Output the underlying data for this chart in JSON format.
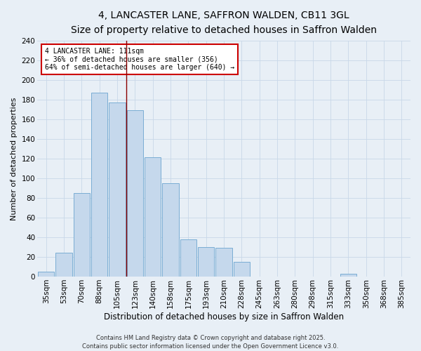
{
  "title_line1": "4, LANCASTER LANE, SAFFRON WALDEN, CB11 3GL",
  "title_line2": "Size of property relative to detached houses in Saffron Walden",
  "xlabel": "Distribution of detached houses by size in Saffron Walden",
  "ylabel": "Number of detached properties",
  "categories": [
    "35sqm",
    "53sqm",
    "70sqm",
    "88sqm",
    "105sqm",
    "123sqm",
    "140sqm",
    "158sqm",
    "175sqm",
    "193sqm",
    "210sqm",
    "228sqm",
    "245sqm",
    "263sqm",
    "280sqm",
    "298sqm",
    "315sqm",
    "333sqm",
    "350sqm",
    "368sqm",
    "385sqm"
  ],
  "values": [
    5,
    24,
    85,
    187,
    177,
    169,
    121,
    95,
    38,
    30,
    29,
    15,
    0,
    0,
    0,
    0,
    0,
    3,
    0,
    0,
    0
  ],
  "bar_color": "#c5d8ec",
  "bar_edge_color": "#7aadd4",
  "vline_x_index": 4,
  "vline_color": "#8b0000",
  "annotation_text": "4 LANCASTER LANE: 111sqm\n← 36% of detached houses are smaller (356)\n64% of semi-detached houses are larger (640) →",
  "annotation_box_color": "#ffffff",
  "annotation_box_edge": "#cc0000",
  "ylim": [
    0,
    240
  ],
  "yticks": [
    0,
    20,
    40,
    60,
    80,
    100,
    120,
    140,
    160,
    180,
    200,
    220,
    240
  ],
  "grid_color": "#c8d8e8",
  "bg_color": "#e8eff6",
  "fig_bg_color": "#e8eff6",
  "footer": "Contains HM Land Registry data © Crown copyright and database right 2025.\nContains public sector information licensed under the Open Government Licence v3.0.",
  "title_fontsize": 10,
  "subtitle_fontsize": 9,
  "xlabel_fontsize": 8.5,
  "ylabel_fontsize": 8,
  "tick_fontsize": 7.5,
  "footer_fontsize": 6,
  "annot_fontsize": 7
}
